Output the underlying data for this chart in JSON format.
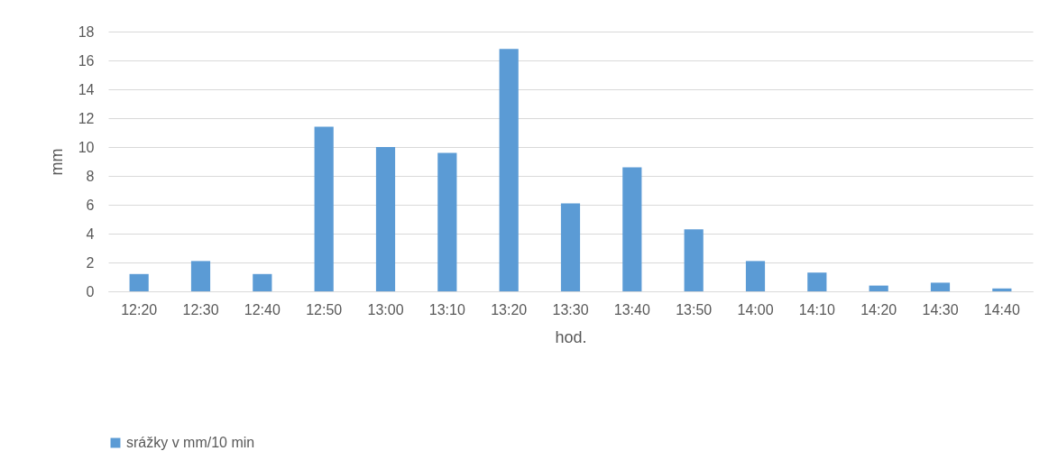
{
  "chart_data": {
    "type": "bar",
    "xlabel": "hod.",
    "ylabel": "mm",
    "categories": [
      "12:20",
      "12:30",
      "12:40",
      "12:50",
      "13:00",
      "13:10",
      "13:20",
      "13:30",
      "13:40",
      "13:50",
      "14:00",
      "14:10",
      "14:20",
      "14:30",
      "14:40"
    ],
    "series": [
      {
        "name": "srážky v mm/10 min",
        "color": "#5b9bd5",
        "values": [
          1.2,
          2.1,
          1.2,
          11.4,
          10,
          9.6,
          16.8,
          6.1,
          8.6,
          4.3,
          2.1,
          1.3,
          0.4,
          0.6,
          0.2
        ]
      }
    ],
    "ylim": [
      0,
      18
    ],
    "yticks": [
      0,
      2,
      4,
      6,
      8,
      10,
      12,
      14,
      16,
      18
    ],
    "grid": "y",
    "legend": "bottom"
  }
}
